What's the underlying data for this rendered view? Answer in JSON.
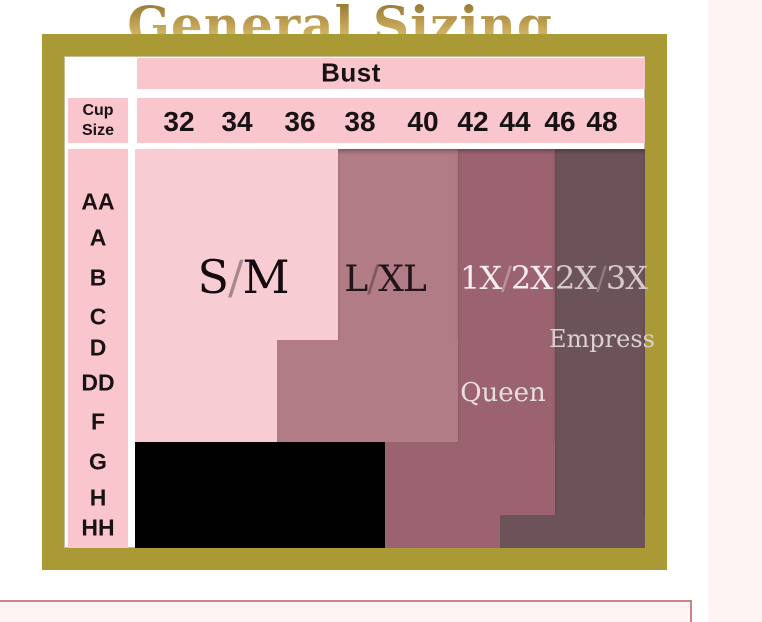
{
  "title": "General Sizing",
  "table": {
    "bust_header": "Bust",
    "cup_header": {
      "line1": "Cup",
      "line2": "Size"
    },
    "bust_sizes": [
      "32",
      "34",
      "36",
      "38",
      "40",
      "42",
      "44",
      "46",
      "48"
    ],
    "cup_sizes": [
      "AA",
      "A",
      "B",
      "C",
      "D",
      "DD",
      "F",
      "G",
      "H",
      "HH"
    ]
  },
  "regions": [
    {
      "id": "sm",
      "label": "S/M",
      "color": "#f8ccd3"
    },
    {
      "id": "lxl",
      "label": "L/XL",
      "color": "#b17c86"
    },
    {
      "id": "queen",
      "label": "1X/2X",
      "name": "Queen",
      "color": "#9b6270"
    },
    {
      "id": "empress",
      "label": "2X/3X",
      "name": "Empress",
      "color": "#6c5359"
    },
    {
      "id": "unavailable",
      "label": "",
      "color": "#010101"
    }
  ],
  "colors": {
    "gold_frame": "#aa9a35",
    "gold_title": "#c7a758",
    "header_pink": "#f9c6ce",
    "region_pink": "#f8ccd3",
    "page_pink": "#fdf4f3",
    "panel_border": "#c9858e",
    "text_dark": "#181214"
  },
  "chart_data": {
    "type": "table",
    "title": "General Sizing",
    "x_axis": {
      "label": "Bust",
      "values": [
        "32",
        "34",
        "36",
        "38",
        "40",
        "42",
        "44",
        "46",
        "48"
      ]
    },
    "y_axis": {
      "label": "Cup Size",
      "values": [
        "AA",
        "A",
        "B",
        "C",
        "D",
        "DD",
        "F",
        "G",
        "H",
        "HH"
      ]
    },
    "mapping": [
      {
        "cups": "AA-C",
        "sm": [
          "32",
          "34",
          "36"
        ],
        "lxl": [
          "38",
          "40"
        ],
        "queen_1x2x": [
          "42",
          "44"
        ],
        "empress_2x3x": [
          "46",
          "48"
        ]
      },
      {
        "cups": "D-F",
        "sm": [
          "32",
          "34"
        ],
        "lxl": [
          "36",
          "38",
          "40"
        ],
        "queen_1x2x": [
          "42",
          "44"
        ],
        "empress_2x3x": [
          "46",
          "48"
        ]
      },
      {
        "cups": "G-H",
        "unavailable_black": [
          "32",
          "34",
          "36",
          "38"
        ],
        "queen_1x2x": [
          "40",
          "42",
          "44"
        ],
        "empress_2x3x": [
          "46",
          "48"
        ]
      },
      {
        "cups": "HH",
        "unavailable_black": [
          "32",
          "34",
          "36",
          "38"
        ],
        "queen_1x2x": [
          "40",
          "42"
        ],
        "empress_2x3x": [
          "44",
          "46",
          "48"
        ]
      }
    ],
    "legend_position": "in-region labels",
    "grid": false
  }
}
